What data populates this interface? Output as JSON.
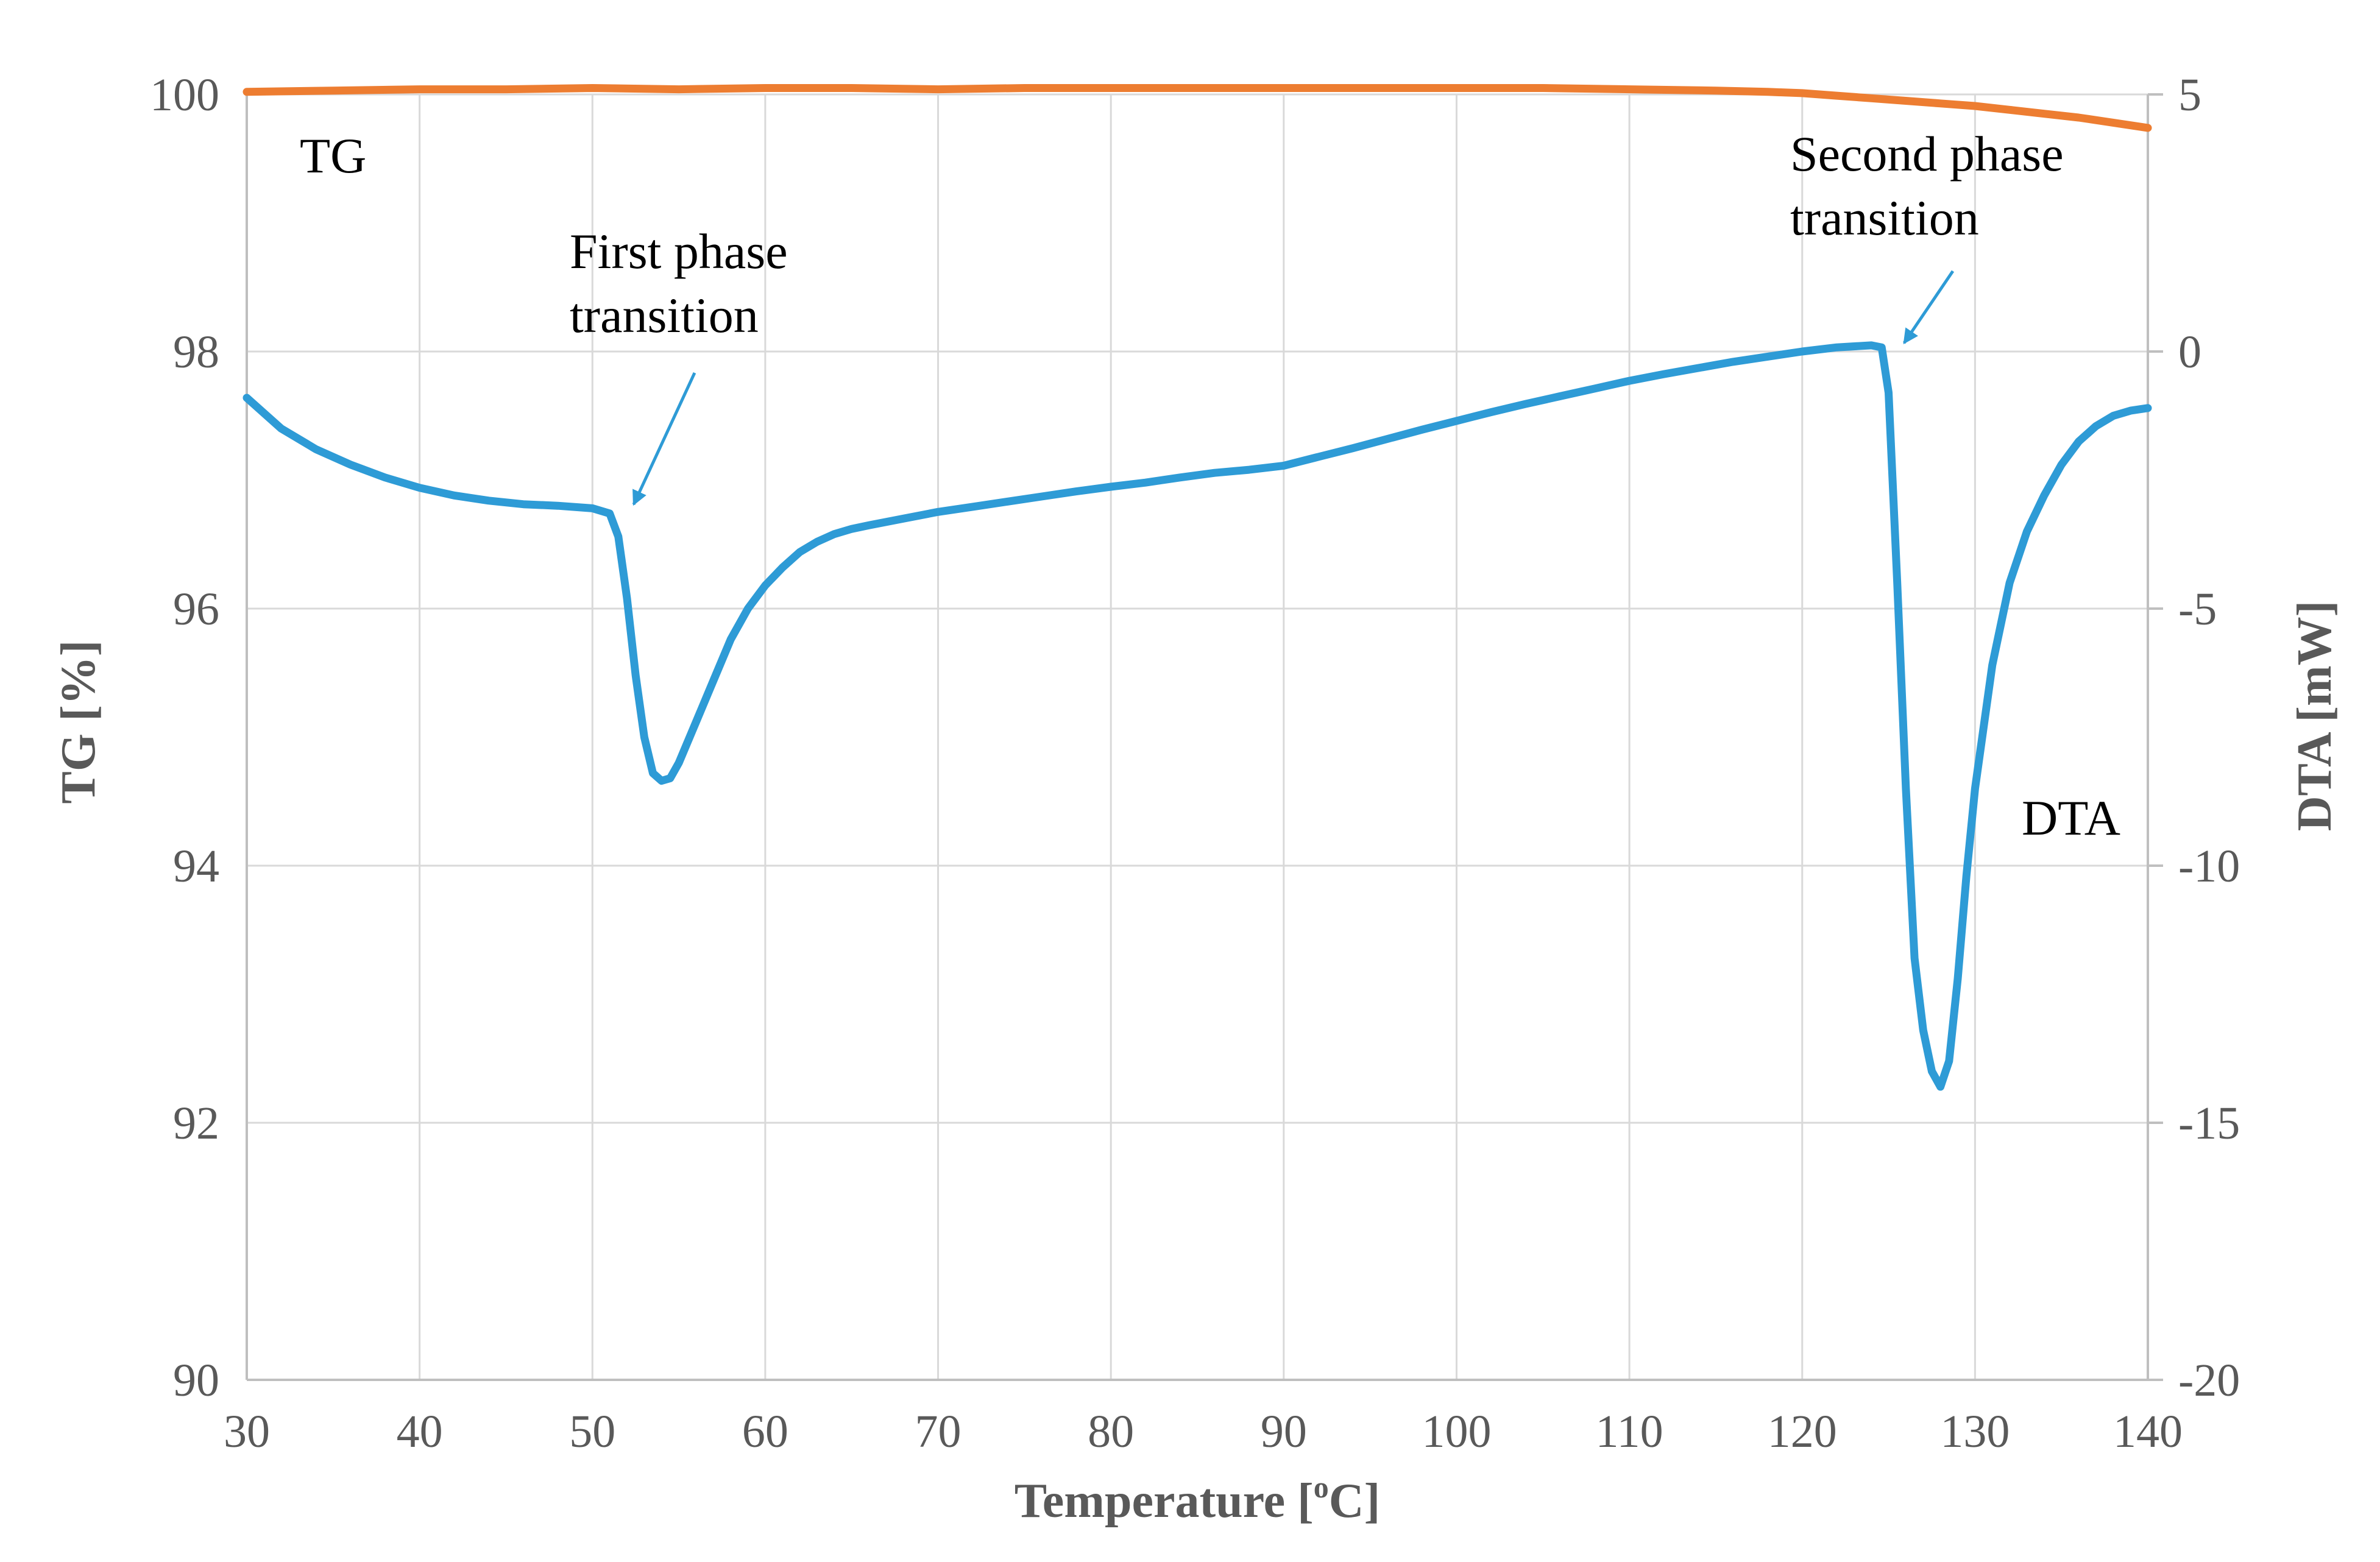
{
  "chart_data": {
    "type": "line",
    "title": "",
    "xlabel": "Temperature [",
    "xlabel_sup": "o",
    "xlabel_tail": "C]",
    "ylabel_left": "TG [%]",
    "ylabel_right": "DTA [mW]",
    "xlim": [
      30,
      140
    ],
    "ylim_left": [
      90,
      100
    ],
    "ylim_right": [
      -20,
      5
    ],
    "x_ticks": [
      30,
      40,
      50,
      60,
      70,
      80,
      90,
      100,
      110,
      120,
      130,
      140
    ],
    "y_left_ticks": [
      90,
      92,
      94,
      96,
      98,
      100
    ],
    "y_right_ticks": [
      -20,
      -15,
      -10,
      -5,
      0,
      5
    ],
    "grid": true,
    "colors": {
      "TG": "#ED7D31",
      "DTA": "#2E9BD6",
      "grid": "#D9D9D9",
      "axis": "#BFBFBF"
    },
    "series": [
      {
        "name": "TG",
        "axis": "left",
        "x": [
          30,
          35,
          40,
          45,
          50,
          55,
          60,
          65,
          70,
          75,
          80,
          85,
          90,
          95,
          100,
          105,
          110,
          115,
          118,
          120,
          122,
          124,
          126,
          128,
          130,
          132,
          134,
          136,
          138,
          140
        ],
        "y": [
          100.02,
          100.03,
          100.04,
          100.04,
          100.05,
          100.04,
          100.05,
          100.05,
          100.04,
          100.05,
          100.05,
          100.05,
          100.05,
          100.05,
          100.05,
          100.05,
          100.04,
          100.03,
          100.02,
          100.01,
          99.99,
          99.97,
          99.95,
          99.93,
          99.91,
          99.88,
          99.85,
          99.82,
          99.78,
          99.74
        ]
      },
      {
        "name": "DTA",
        "axis": "right",
        "x": [
          30,
          32,
          34,
          36,
          38,
          40,
          42,
          44,
          46,
          48,
          50,
          51,
          51.5,
          52,
          52.5,
          53,
          53.5,
          54,
          54.5,
          55,
          56,
          57,
          58,
          59,
          60,
          61,
          62,
          63,
          64,
          65,
          66,
          68,
          70,
          72,
          74,
          76,
          78,
          80,
          82,
          84,
          86,
          88,
          90,
          92,
          94,
          96,
          98,
          100,
          102,
          104,
          106,
          108,
          110,
          112,
          114,
          116,
          118,
          120,
          122,
          124,
          124.6,
          125,
          125.5,
          126,
          126.5,
          127,
          127.5,
          128,
          128.5,
          129,
          129.5,
          130,
          131,
          132,
          133,
          134,
          135,
          136,
          137,
          138,
          139,
          140
        ],
        "y": [
          -0.9,
          -1.5,
          -1.9,
          -2.2,
          -2.45,
          -2.65,
          -2.8,
          -2.9,
          -2.97,
          -3.0,
          -3.05,
          -3.15,
          -3.6,
          -4.8,
          -6.3,
          -7.5,
          -8.2,
          -8.35,
          -8.3,
          -8.0,
          -7.2,
          -6.4,
          -5.6,
          -5.0,
          -4.55,
          -4.2,
          -3.9,
          -3.7,
          -3.55,
          -3.45,
          -3.38,
          -3.25,
          -3.12,
          -3.02,
          -2.92,
          -2.82,
          -2.72,
          -2.63,
          -2.55,
          -2.45,
          -2.36,
          -2.3,
          -2.22,
          -2.05,
          -1.88,
          -1.7,
          -1.52,
          -1.35,
          -1.18,
          -1.02,
          -0.87,
          -0.72,
          -0.57,
          -0.44,
          -0.32,
          -0.2,
          -0.1,
          0.0,
          0.08,
          0.12,
          0.08,
          -0.8,
          -4.5,
          -8.5,
          -11.8,
          -13.2,
          -14.0,
          -14.3,
          -13.8,
          -12.2,
          -10.2,
          -8.5,
          -6.1,
          -4.5,
          -3.5,
          -2.8,
          -2.2,
          -1.75,
          -1.45,
          -1.25,
          -1.15,
          -1.1
        ]
      }
    ],
    "annotations": [
      {
        "id": "tg",
        "lines": [
          "TG"
        ]
      },
      {
        "id": "dta",
        "lines": [
          "DTA"
        ]
      },
      {
        "id": "first",
        "lines": [
          "First phase",
          "transition"
        ]
      },
      {
        "id": "second",
        "lines": [
          "Second phase",
          "transition"
        ]
      }
    ]
  }
}
